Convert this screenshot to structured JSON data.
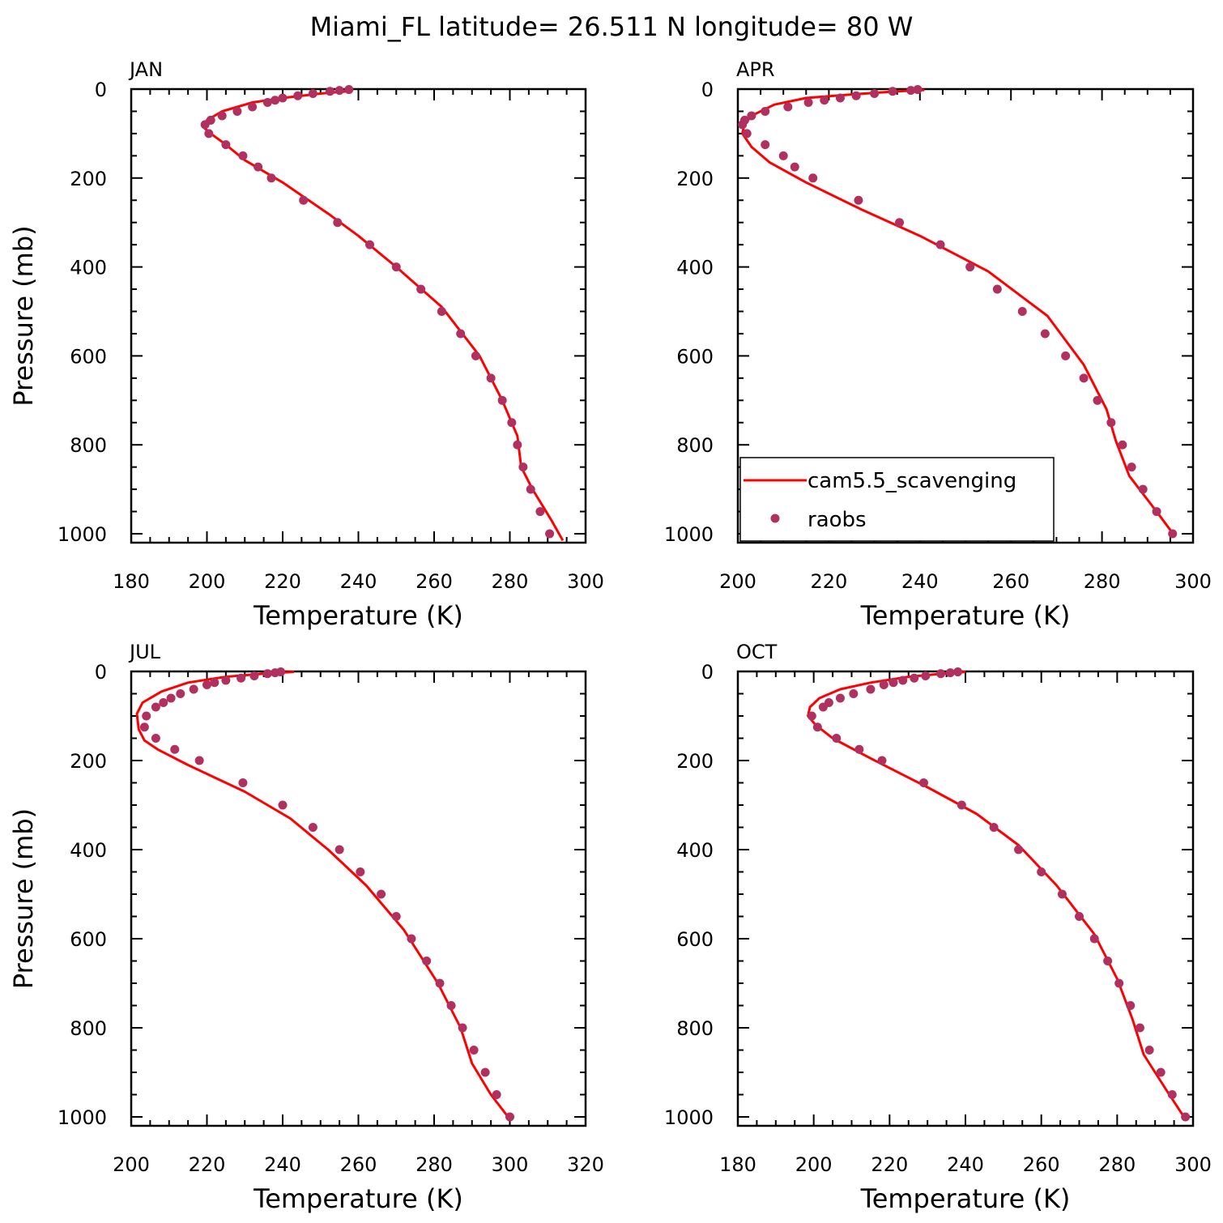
{
  "title": "Miami_FL  latitude= 26.511 N longitude= 80 W",
  "legend": {
    "model_label": "cam5.5_scavenging",
    "obs_label": "raobs"
  },
  "colors": {
    "model": "#ff0000",
    "obs": "#b03060"
  },
  "chart_data": [
    {
      "type": "line",
      "panel": "JAN",
      "xlabel": "Temperature (K)",
      "ylabel": "Pressure (mb)",
      "xlim": [
        180,
        300
      ],
      "ylim": [
        1020,
        0
      ],
      "xticks": [
        180,
        200,
        220,
        240,
        260,
        280,
        300
      ],
      "yticks": [
        0,
        200,
        400,
        600,
        800,
        1000
      ],
      "y_reversed": true,
      "series": [
        {
          "name": "cam5.5_scavenging",
          "style": "line",
          "x": [
            237,
            230,
            220,
            212,
            204,
            200,
            199,
            201,
            205,
            210,
            220,
            232,
            240,
            250,
            262,
            272,
            278,
            282,
            283,
            286,
            291,
            294
          ],
          "y": [
            5,
            10,
            20,
            30,
            50,
            70,
            85,
            100,
            125,
            160,
            210,
            280,
            330,
            400,
            490,
            600,
            700,
            780,
            850,
            900,
            970,
            1015
          ]
        },
        {
          "name": "raobs",
          "style": "markers",
          "x": [
            237.5,
            235,
            232.5,
            228,
            224,
            220,
            218,
            216,
            212,
            208,
            204,
            201,
            199.5,
            200.5,
            205,
            209.5,
            213.5,
            217,
            225.5,
            234.5,
            243,
            250,
            256.5,
            262,
            267,
            271,
            275,
            278,
            280.5,
            282,
            283.5,
            285.5,
            288,
            290.5
          ],
          "y": [
            1,
            3,
            5,
            10,
            15,
            20,
            25,
            30,
            40,
            50,
            60,
            70,
            80,
            100,
            125,
            150,
            175,
            200,
            250,
            300,
            350,
            400,
            450,
            500,
            550,
            600,
            650,
            700,
            750,
            800,
            850,
            900,
            950,
            1000
          ]
        }
      ]
    },
    {
      "type": "line",
      "panel": "APR",
      "xlabel": "Temperature (K)",
      "ylabel": "",
      "xlim": [
        200,
        300
      ],
      "ylim": [
        1020,
        0
      ],
      "xticks": [
        200,
        220,
        240,
        260,
        280,
        300
      ],
      "yticks": [
        0,
        200,
        400,
        600,
        800,
        1000
      ],
      "y_reversed": true,
      "series": [
        {
          "name": "cam5.5_scavenging",
          "style": "line",
          "x": [
            241,
            235,
            225,
            215,
            208,
            204,
            201.5,
            201,
            203,
            207,
            215,
            227,
            240,
            255,
            268,
            276,
            281,
            283,
            286,
            292,
            296
          ],
          "y": [
            2,
            5,
            12,
            20,
            35,
            55,
            75,
            100,
            130,
            165,
            210,
            270,
            330,
            410,
            510,
            620,
            720,
            790,
            870,
            950,
            1005
          ]
        },
        {
          "name": "raobs",
          "style": "markers",
          "x": [
            239.5,
            238,
            234,
            230,
            226,
            222.5,
            219,
            215.5,
            211,
            206,
            203,
            201.5,
            201,
            202,
            206,
            210,
            212.5,
            216.5,
            226.5,
            235.5,
            244.5,
            251,
            257,
            262.5,
            267.5,
            272,
            276,
            279,
            282,
            284.5,
            286.5,
            289,
            292,
            295.5
          ],
          "y": [
            1,
            3,
            5,
            10,
            15,
            20,
            25,
            30,
            40,
            50,
            60,
            70,
            80,
            100,
            125,
            150,
            175,
            200,
            250,
            300,
            350,
            400,
            450,
            500,
            550,
            600,
            650,
            700,
            750,
            800,
            850,
            900,
            950,
            1000
          ]
        }
      ]
    },
    {
      "type": "line",
      "panel": "JUL",
      "xlabel": "Temperature (K)",
      "ylabel": "Pressure (mb)",
      "xlim": [
        200,
        320
      ],
      "ylim": [
        1020,
        0
      ],
      "xticks": [
        200,
        220,
        240,
        260,
        280,
        300,
        320
      ],
      "yticks": [
        0,
        200,
        400,
        600,
        800,
        1000
      ],
      "y_reversed": true,
      "series": [
        {
          "name": "cam5.5_scavenging",
          "style": "line",
          "x": [
            243,
            235,
            225,
            215,
            208,
            203,
            201.5,
            202,
            203.5,
            207,
            215,
            230,
            242,
            252,
            262,
            272,
            281,
            287,
            290,
            295,
            300
          ],
          "y": [
            1,
            5,
            12,
            25,
            45,
            70,
            95,
            130,
            155,
            175,
            210,
            270,
            330,
            400,
            480,
            580,
            700,
            800,
            880,
            950,
            1005
          ]
        },
        {
          "name": "raobs",
          "style": "markers",
          "x": [
            239.5,
            238,
            236,
            232.5,
            229,
            225,
            222,
            220,
            216.5,
            213,
            210.5,
            208.5,
            206.5,
            204,
            203.5,
            206.5,
            211.5,
            218,
            229.5,
            240,
            248,
            255,
            260.5,
            266,
            270,
            274,
            278,
            281.5,
            284.5,
            287.5,
            290.5,
            293.5,
            296.5,
            300
          ],
          "y": [
            1,
            3,
            5,
            10,
            15,
            20,
            25,
            30,
            40,
            50,
            60,
            70,
            80,
            100,
            125,
            150,
            175,
            200,
            250,
            300,
            350,
            400,
            450,
            500,
            550,
            600,
            650,
            700,
            750,
            800,
            850,
            900,
            950,
            1000
          ]
        }
      ]
    },
    {
      "type": "line",
      "panel": "OCT",
      "xlabel": "Temperature (K)",
      "ylabel": "",
      "xlim": [
        180,
        300
      ],
      "ylim": [
        1020,
        0
      ],
      "xticks": [
        180,
        200,
        220,
        240,
        260,
        280,
        300
      ],
      "yticks": [
        0,
        200,
        400,
        600,
        800,
        1000
      ],
      "y_reversed": true,
      "series": [
        {
          "name": "cam5.5_scavenging",
          "style": "line",
          "x": [
            240,
            234,
            225,
            215,
            207,
            201.5,
            199,
            198.5,
            200.5,
            205,
            215,
            230,
            243,
            254,
            264,
            274,
            280,
            284,
            287,
            293,
            298
          ],
          "y": [
            1,
            5,
            12,
            25,
            40,
            60,
            80,
            100,
            120,
            150,
            195,
            260,
            320,
            390,
            480,
            590,
            690,
            780,
            860,
            940,
            1005
          ]
        },
        {
          "name": "raobs",
          "style": "markers",
          "x": [
            238,
            236,
            233.5,
            229.5,
            226.5,
            223.5,
            221,
            218.5,
            215,
            210.5,
            207,
            204,
            202.5,
            199.5,
            201,
            206,
            212,
            218,
            229,
            239,
            247.5,
            254,
            260,
            265.5,
            270,
            274,
            277.5,
            280.5,
            283.5,
            286,
            288.5,
            291.5,
            294.5,
            298
          ],
          "y": [
            1,
            3,
            5,
            10,
            15,
            20,
            25,
            30,
            40,
            50,
            60,
            70,
            80,
            100,
            125,
            150,
            175,
            200,
            250,
            300,
            350,
            400,
            450,
            500,
            550,
            600,
            650,
            700,
            750,
            800,
            850,
            900,
            950,
            1000
          ]
        }
      ]
    }
  ]
}
